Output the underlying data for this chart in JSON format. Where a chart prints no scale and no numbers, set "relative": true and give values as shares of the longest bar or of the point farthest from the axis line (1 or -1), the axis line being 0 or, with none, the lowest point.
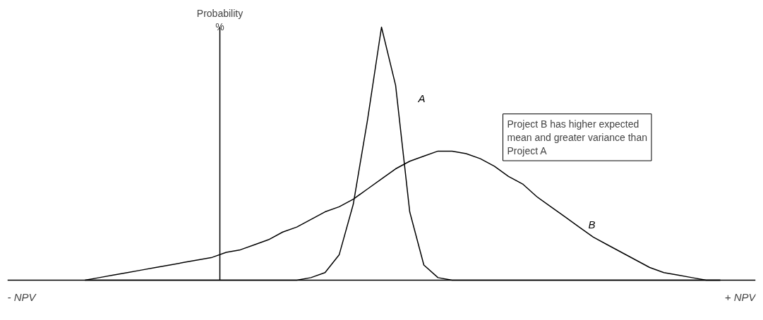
{
  "chart_data": {
    "type": "line",
    "relative": true,
    "ylabel": "Probability %",
    "categories": [
      null,
      null,
      null,
      null,
      null,
      null,
      null,
      null,
      null,
      null,
      null,
      null,
      null,
      null,
      null,
      null,
      null,
      null,
      null,
      null,
      null,
      null,
      null,
      null,
      null,
      null,
      null,
      null,
      null,
      null,
      null,
      null,
      null,
      null,
      null,
      null,
      null,
      null,
      null,
      null,
      null,
      null,
      null,
      null,
      null,
      null
    ],
    "series": [
      {
        "name": "A",
        "color": "#000000",
        "values": [
          0,
          0,
          0,
          0,
          0,
          0,
          0,
          0,
          0,
          0,
          0,
          0,
          0,
          0,
          0,
          0,
          0.01,
          0.03,
          0.1,
          0.3,
          0.63,
          1,
          0.77,
          0.27,
          0.06,
          0.01,
          0,
          0,
          0,
          0,
          0,
          0,
          0,
          0,
          0,
          0,
          0,
          0,
          0,
          0,
          0,
          0,
          0,
          0,
          0,
          0
        ]
      },
      {
        "name": "B",
        "color": "#000000",
        "values": [
          0,
          0.01,
          0.02,
          0.03,
          0.04,
          0.05,
          0.06,
          0.07,
          0.08,
          0.09,
          0.11,
          0.12,
          0.14,
          0.16,
          0.19,
          0.21,
          0.24,
          0.27,
          0.29,
          0.32,
          0.36,
          0.4,
          0.44,
          0.47,
          0.49,
          0.51,
          0.51,
          0.5,
          0.48,
          0.45,
          0.41,
          0.38,
          0.33,
          0.29,
          0.25,
          0.21,
          0.17,
          0.14,
          0.11,
          0.08,
          0.05,
          0.03,
          0.02,
          0.01,
          0,
          0
        ]
      }
    ],
    "annotations": [
      "Project B has higher expected mean and greater variance than Project A",
      "- NPV",
      "+ NPV"
    ],
    "grid": false,
    "marker": "none",
    "line_style": "solid"
  }
}
